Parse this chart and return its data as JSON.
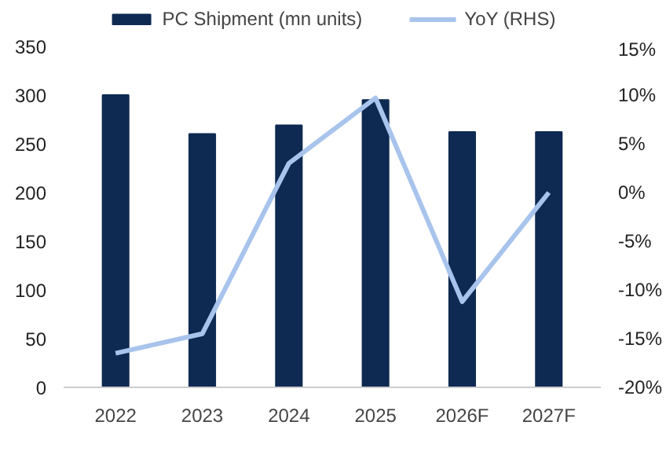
{
  "chart_data": {
    "type": "bar",
    "categories": [
      "2022",
      "2023",
      "2024",
      "2025",
      "2026F",
      "2027F"
    ],
    "series": [
      {
        "name": "PC Shipment (mn units)",
        "color": "#0f2a52",
        "values": [
          300,
          260,
          269,
          295,
          262,
          262
        ]
      },
      {
        "name": "YoY (RHS)",
        "type": "line",
        "axis": "y2",
        "color": "#a8c4ec",
        "values": [
          -16.5,
          -14.5,
          3,
          9.7,
          -11.2,
          0
        ]
      }
    ],
    "ylim": [
      0,
      350
    ],
    "yticks": [
      0,
      50,
      100,
      150,
      200,
      250,
      300,
      350
    ],
    "y2lim": [
      -20,
      15
    ],
    "y2ticks": [
      {
        "value": -20,
        "label": "-20%"
      },
      {
        "value": -15,
        "label": "-15%"
      },
      {
        "value": -10,
        "label": "-10%"
      },
      {
        "value": -5,
        "label": "-5%"
      },
      {
        "value": 0,
        "label": "0%"
      },
      {
        "value": 5,
        "label": "5%"
      },
      {
        "value": 10,
        "label": "10%"
      },
      {
        "value": 15,
        "label": "15%"
      }
    ],
    "grid": false,
    "legend": "top"
  }
}
